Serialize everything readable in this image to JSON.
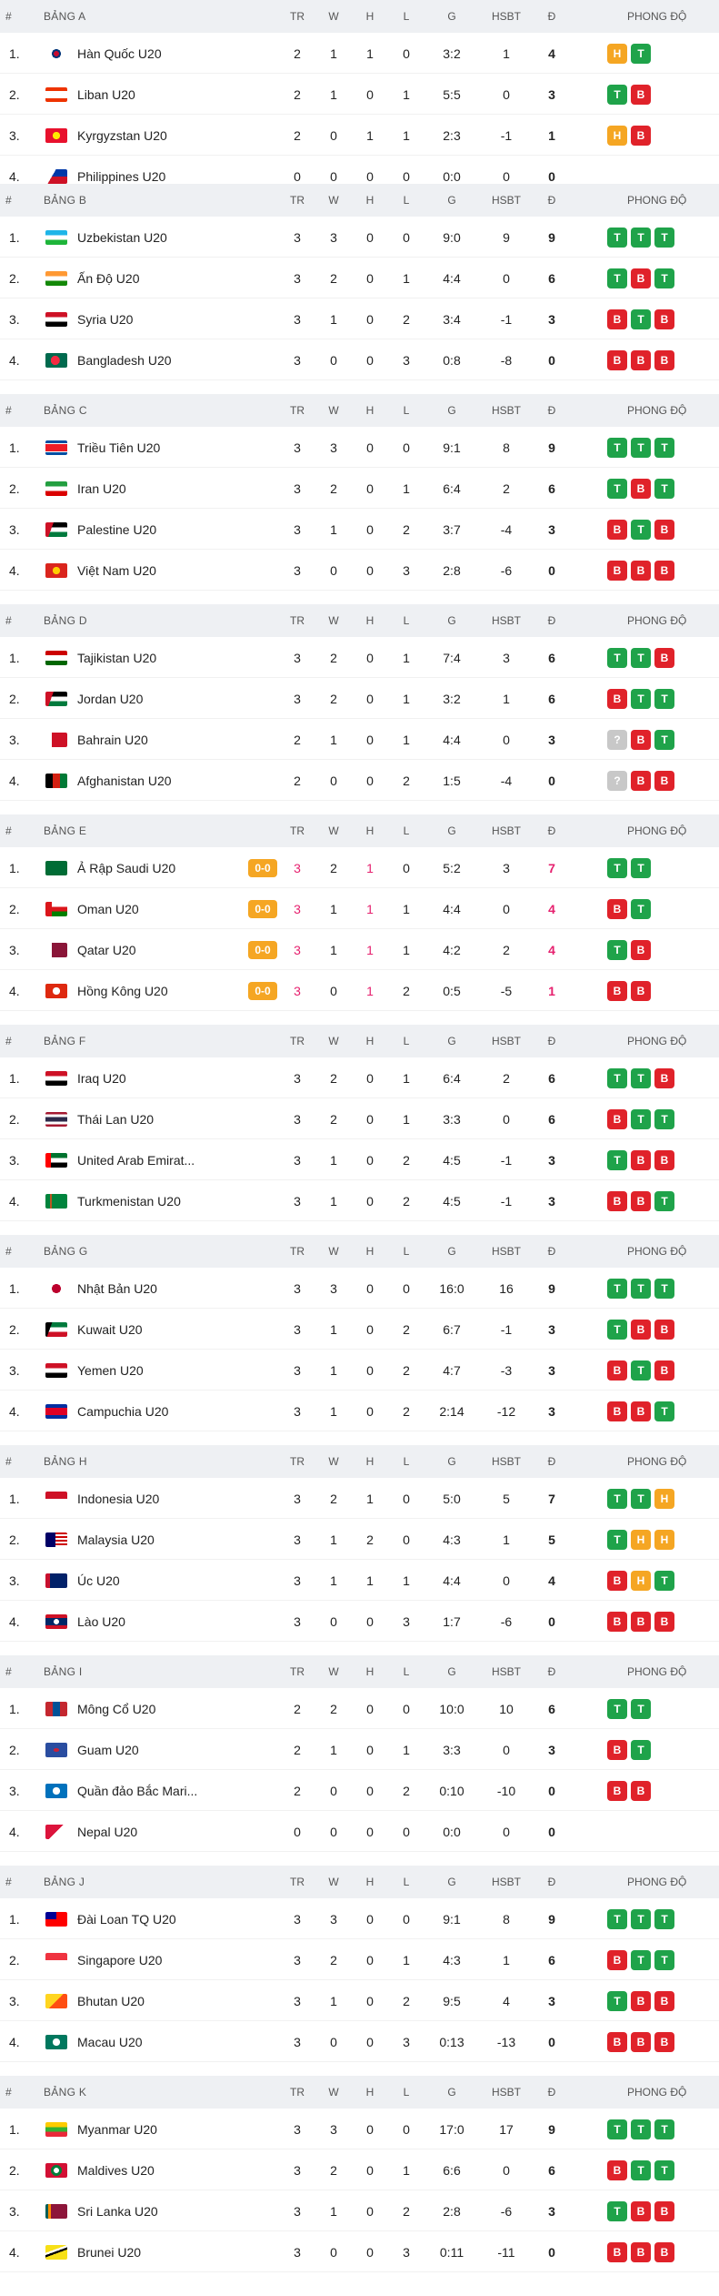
{
  "header": {
    "hash": "#",
    "cols": {
      "tr": "TR",
      "w": "W",
      "h": "H",
      "l": "L",
      "g": "G",
      "hsbt": "HSBT",
      "d": "Đ",
      "form": "PHONG ĐỘ"
    }
  },
  "groups": [
    {
      "name": "BẢNG A",
      "rows": [
        {
          "rank": "1.",
          "team": "Hàn Quốc U20",
          "flag": "kr",
          "tr": "2",
          "w": "1",
          "h": "1",
          "l": "0",
          "g": "3:2",
          "hsbt": "1",
          "pts": "4",
          "form": [
            "H",
            "T"
          ]
        },
        {
          "rank": "2.",
          "team": "Liban U20",
          "flag": "lb",
          "tr": "2",
          "w": "1",
          "h": "0",
          "l": "1",
          "g": "5:5",
          "hsbt": "0",
          "pts": "3",
          "form": [
            "T",
            "B"
          ]
        },
        {
          "rank": "3.",
          "team": "Kyrgyzstan U20",
          "flag": "kg",
          "tr": "2",
          "w": "0",
          "h": "1",
          "l": "1",
          "g": "2:3",
          "hsbt": "-1",
          "pts": "1",
          "form": [
            "H",
            "B"
          ]
        },
        {
          "rank": "4.",
          "team": "Philippines U20",
          "flag": "ph",
          "tr": "0",
          "w": "0",
          "h": "0",
          "l": "0",
          "g": "0:0",
          "hsbt": "0",
          "pts": "0",
          "form": []
        }
      ]
    },
    {
      "name": "BẢNG B",
      "rows": [
        {
          "rank": "1.",
          "team": "Uzbekistan U20",
          "flag": "uz",
          "tr": "3",
          "w": "3",
          "h": "0",
          "l": "0",
          "g": "9:0",
          "hsbt": "9",
          "pts": "9",
          "form": [
            "T",
            "T",
            "T"
          ]
        },
        {
          "rank": "2.",
          "team": "Ấn Độ U20",
          "flag": "in",
          "tr": "3",
          "w": "2",
          "h": "0",
          "l": "1",
          "g": "4:4",
          "hsbt": "0",
          "pts": "6",
          "form": [
            "T",
            "B",
            "T"
          ]
        },
        {
          "rank": "3.",
          "team": "Syria U20",
          "flag": "sy",
          "tr": "3",
          "w": "1",
          "h": "0",
          "l": "2",
          "g": "3:4",
          "hsbt": "-1",
          "pts": "3",
          "form": [
            "B",
            "T",
            "B"
          ]
        },
        {
          "rank": "4.",
          "team": "Bangladesh U20",
          "flag": "bd",
          "tr": "3",
          "w": "0",
          "h": "0",
          "l": "3",
          "g": "0:8",
          "hsbt": "-8",
          "pts": "0",
          "form": [
            "B",
            "B",
            "B"
          ]
        }
      ]
    },
    {
      "name": "BẢNG C",
      "rows": [
        {
          "rank": "1.",
          "team": "Triều Tiên U20",
          "flag": "kp",
          "tr": "3",
          "w": "3",
          "h": "0",
          "l": "0",
          "g": "9:1",
          "hsbt": "8",
          "pts": "9",
          "form": [
            "T",
            "T",
            "T"
          ]
        },
        {
          "rank": "2.",
          "team": "Iran U20",
          "flag": "ir",
          "tr": "3",
          "w": "2",
          "h": "0",
          "l": "1",
          "g": "6:4",
          "hsbt": "2",
          "pts": "6",
          "form": [
            "T",
            "B",
            "T"
          ]
        },
        {
          "rank": "3.",
          "team": "Palestine U20",
          "flag": "ps",
          "tr": "3",
          "w": "1",
          "h": "0",
          "l": "2",
          "g": "3:7",
          "hsbt": "-4",
          "pts": "3",
          "form": [
            "B",
            "T",
            "B"
          ]
        },
        {
          "rank": "4.",
          "team": "Việt Nam U20",
          "flag": "vn",
          "tr": "3",
          "w": "0",
          "h": "0",
          "l": "3",
          "g": "2:8",
          "hsbt": "-6",
          "pts": "0",
          "form": [
            "B",
            "B",
            "B"
          ]
        }
      ]
    },
    {
      "name": "BẢNG D",
      "rows": [
        {
          "rank": "1.",
          "team": "Tajikistan U20",
          "flag": "tj",
          "tr": "3",
          "w": "2",
          "h": "0",
          "l": "1",
          "g": "7:4",
          "hsbt": "3",
          "pts": "6",
          "form": [
            "T",
            "T",
            "B"
          ]
        },
        {
          "rank": "2.",
          "team": "Jordan U20",
          "flag": "jo",
          "tr": "3",
          "w": "2",
          "h": "0",
          "l": "1",
          "g": "3:2",
          "hsbt": "1",
          "pts": "6",
          "form": [
            "B",
            "T",
            "T"
          ]
        },
        {
          "rank": "3.",
          "team": "Bahrain U20",
          "flag": "bh",
          "tr": "2",
          "w": "1",
          "h": "0",
          "l": "1",
          "g": "4:4",
          "hsbt": "0",
          "pts": "3",
          "form": [
            "?",
            "B",
            "T"
          ]
        },
        {
          "rank": "4.",
          "team": "Afghanistan U20",
          "flag": "af",
          "tr": "2",
          "w": "0",
          "h": "0",
          "l": "2",
          "g": "1:5",
          "hsbt": "-4",
          "pts": "0",
          "form": [
            "?",
            "B",
            "B"
          ]
        }
      ]
    },
    {
      "name": "BẢNG E",
      "live": true,
      "rows": [
        {
          "rank": "1.",
          "team": "Ả Rập Saudi U20",
          "flag": "sa",
          "live": "0-0",
          "tr": "3",
          "w": "2",
          "h": "1",
          "l": "0",
          "g": "5:2",
          "hsbt": "3",
          "pts": "7",
          "form": [
            "T",
            "T"
          ]
        },
        {
          "rank": "2.",
          "team": "Oman U20",
          "flag": "om",
          "live": "0-0",
          "tr": "3",
          "w": "1",
          "h": "1",
          "l": "1",
          "g": "4:4",
          "hsbt": "0",
          "pts": "4",
          "form": [
            "B",
            "T"
          ]
        },
        {
          "rank": "3.",
          "team": "Qatar U20",
          "flag": "qa",
          "live": "0-0",
          "tr": "3",
          "w": "1",
          "h": "1",
          "l": "1",
          "g": "4:2",
          "hsbt": "2",
          "pts": "4",
          "form": [
            "T",
            "B"
          ]
        },
        {
          "rank": "4.",
          "team": "Hồng Kông U20",
          "flag": "hk",
          "live": "0-0",
          "tr": "3",
          "w": "0",
          "h": "1",
          "l": "2",
          "g": "0:5",
          "hsbt": "-5",
          "pts": "1",
          "form": [
            "B",
            "B"
          ]
        }
      ]
    },
    {
      "name": "BẢNG F",
      "rows": [
        {
          "rank": "1.",
          "team": "Iraq U20",
          "flag": "iq",
          "tr": "3",
          "w": "2",
          "h": "0",
          "l": "1",
          "g": "6:4",
          "hsbt": "2",
          "pts": "6",
          "form": [
            "T",
            "T",
            "B"
          ]
        },
        {
          "rank": "2.",
          "team": "Thái Lan U20",
          "flag": "th",
          "tr": "3",
          "w": "2",
          "h": "0",
          "l": "1",
          "g": "3:3",
          "hsbt": "0",
          "pts": "6",
          "form": [
            "B",
            "T",
            "T"
          ]
        },
        {
          "rank": "3.",
          "team": "United Arab Emirat...",
          "flag": "ae",
          "tr": "3",
          "w": "1",
          "h": "0",
          "l": "2",
          "g": "4:5",
          "hsbt": "-1",
          "pts": "3",
          "form": [
            "T",
            "B",
            "B"
          ]
        },
        {
          "rank": "4.",
          "team": "Turkmenistan U20",
          "flag": "tm",
          "tr": "3",
          "w": "1",
          "h": "0",
          "l": "2",
          "g": "4:5",
          "hsbt": "-1",
          "pts": "3",
          "form": [
            "B",
            "B",
            "T"
          ]
        }
      ]
    },
    {
      "name": "BẢNG G",
      "rows": [
        {
          "rank": "1.",
          "team": "Nhật Bản U20",
          "flag": "jp",
          "tr": "3",
          "w": "3",
          "h": "0",
          "l": "0",
          "g": "16:0",
          "hsbt": "16",
          "pts": "9",
          "form": [
            "T",
            "T",
            "T"
          ]
        },
        {
          "rank": "2.",
          "team": "Kuwait U20",
          "flag": "kw",
          "tr": "3",
          "w": "1",
          "h": "0",
          "l": "2",
          "g": "6:7",
          "hsbt": "-1",
          "pts": "3",
          "form": [
            "T",
            "B",
            "B"
          ]
        },
        {
          "rank": "3.",
          "team": "Yemen U20",
          "flag": "ye",
          "tr": "3",
          "w": "1",
          "h": "0",
          "l": "2",
          "g": "4:7",
          "hsbt": "-3",
          "pts": "3",
          "form": [
            "B",
            "T",
            "B"
          ]
        },
        {
          "rank": "4.",
          "team": "Campuchia U20",
          "flag": "kh",
          "tr": "3",
          "w": "1",
          "h": "0",
          "l": "2",
          "g": "2:14",
          "hsbt": "-12",
          "pts": "3",
          "form": [
            "B",
            "B",
            "T"
          ]
        }
      ]
    },
    {
      "name": "BẢNG H",
      "rows": [
        {
          "rank": "1.",
          "team": "Indonesia U20",
          "flag": "id",
          "tr": "3",
          "w": "2",
          "h": "1",
          "l": "0",
          "g": "5:0",
          "hsbt": "5",
          "pts": "7",
          "form": [
            "T",
            "T",
            "H"
          ]
        },
        {
          "rank": "2.",
          "team": "Malaysia U20",
          "flag": "my",
          "tr": "3",
          "w": "1",
          "h": "2",
          "l": "0",
          "g": "4:3",
          "hsbt": "1",
          "pts": "5",
          "form": [
            "T",
            "H",
            "H"
          ]
        },
        {
          "rank": "3.",
          "team": "Úc U20",
          "flag": "au",
          "tr": "3",
          "w": "1",
          "h": "1",
          "l": "1",
          "g": "4:4",
          "hsbt": "0",
          "pts": "4",
          "form": [
            "B",
            "H",
            "T"
          ]
        },
        {
          "rank": "4.",
          "team": "Lào U20",
          "flag": "la",
          "tr": "3",
          "w": "0",
          "h": "0",
          "l": "3",
          "g": "1:7",
          "hsbt": "-6",
          "pts": "0",
          "form": [
            "B",
            "B",
            "B"
          ]
        }
      ]
    },
    {
      "name": "BẢNG I",
      "rows": [
        {
          "rank": "1.",
          "team": "Mông Cổ U20",
          "flag": "mn",
          "tr": "2",
          "w": "2",
          "h": "0",
          "l": "0",
          "g": "10:0",
          "hsbt": "10",
          "pts": "6",
          "form": [
            "T",
            "T"
          ]
        },
        {
          "rank": "2.",
          "team": "Guam U20",
          "flag": "gu",
          "tr": "2",
          "w": "1",
          "h": "0",
          "l": "1",
          "g": "3:3",
          "hsbt": "0",
          "pts": "3",
          "form": [
            "B",
            "T"
          ]
        },
        {
          "rank": "3.",
          "team": "Quần đảo Bắc Mari...",
          "flag": "mp",
          "tr": "2",
          "w": "0",
          "h": "0",
          "l": "2",
          "g": "0:10",
          "hsbt": "-10",
          "pts": "0",
          "form": [
            "B",
            "B"
          ]
        },
        {
          "rank": "4.",
          "team": "Nepal U20",
          "flag": "np",
          "tr": "0",
          "w": "0",
          "h": "0",
          "l": "0",
          "g": "0:0",
          "hsbt": "0",
          "pts": "0",
          "form": []
        }
      ]
    },
    {
      "name": "BẢNG J",
      "rows": [
        {
          "rank": "1.",
          "team": "Đài Loan TQ U20",
          "flag": "tw",
          "tr": "3",
          "w": "3",
          "h": "0",
          "l": "0",
          "g": "9:1",
          "hsbt": "8",
          "pts": "9",
          "form": [
            "T",
            "T",
            "T"
          ]
        },
        {
          "rank": "2.",
          "team": "Singapore U20",
          "flag": "sg",
          "tr": "3",
          "w": "2",
          "h": "0",
          "l": "1",
          "g": "4:3",
          "hsbt": "1",
          "pts": "6",
          "form": [
            "B",
            "T",
            "T"
          ]
        },
        {
          "rank": "3.",
          "team": "Bhutan U20",
          "flag": "bt",
          "tr": "3",
          "w": "1",
          "h": "0",
          "l": "2",
          "g": "9:5",
          "hsbt": "4",
          "pts": "3",
          "form": [
            "T",
            "B",
            "B"
          ]
        },
        {
          "rank": "4.",
          "team": "Macau U20",
          "flag": "mo",
          "tr": "3",
          "w": "0",
          "h": "0",
          "l": "3",
          "g": "0:13",
          "hsbt": "-13",
          "pts": "0",
          "form": [
            "B",
            "B",
            "B"
          ]
        }
      ]
    },
    {
      "name": "BẢNG K",
      "rows": [
        {
          "rank": "1.",
          "team": "Myanmar U20",
          "flag": "mm",
          "tr": "3",
          "w": "3",
          "h": "0",
          "l": "0",
          "g": "17:0",
          "hsbt": "17",
          "pts": "9",
          "form": [
            "T",
            "T",
            "T"
          ]
        },
        {
          "rank": "2.",
          "team": "Maldives U20",
          "flag": "mv",
          "tr": "3",
          "w": "2",
          "h": "0",
          "l": "1",
          "g": "6:6",
          "hsbt": "0",
          "pts": "6",
          "form": [
            "B",
            "T",
            "T"
          ]
        },
        {
          "rank": "3.",
          "team": "Sri Lanka U20",
          "flag": "lk",
          "tr": "3",
          "w": "1",
          "h": "0",
          "l": "2",
          "g": "2:8",
          "hsbt": "-6",
          "pts": "3",
          "form": [
            "T",
            "B",
            "B"
          ]
        },
        {
          "rank": "4.",
          "team": "Brunei U20",
          "flag": "bn",
          "tr": "3",
          "w": "0",
          "h": "0",
          "l": "3",
          "g": "0:11",
          "hsbt": "-11",
          "pts": "0",
          "form": [
            "B",
            "B",
            "B"
          ]
        }
      ]
    }
  ],
  "colors": {
    "win": "#1fa34a",
    "loss": "#e0222a",
    "draw": "#f5a623",
    "live": "#e6206e",
    "unknown": "#c8c8c8"
  }
}
